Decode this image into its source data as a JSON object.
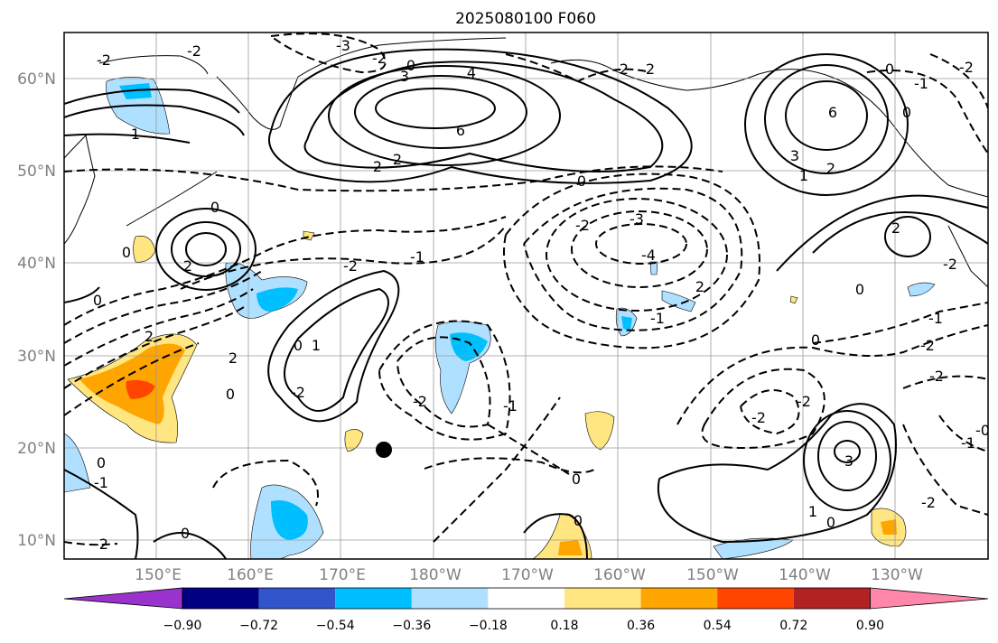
{
  "title": "2025080100 F060",
  "lat_labels": [
    "60°N",
    "50°N",
    "40°N",
    "30°N",
    "20°N",
    "10°N"
  ],
  "lon_labels": [
    "150°E",
    "160°E",
    "170°E",
    "180°W",
    "170°W",
    "160°W",
    "150°W",
    "140°W",
    "130°W"
  ],
  "colorbar": {
    "ticks": [
      "−0.90",
      "−0.72",
      "−0.54",
      "−0.36",
      "−0.18",
      "0.18",
      "0.36",
      "0.54",
      "0.72",
      "0.90"
    ],
    "colors": [
      "#9933cc",
      "#000080",
      "#3355cc",
      "#00bfff",
      "#b0e0ff",
      "#ffffff",
      "#ffe680",
      "#ffa500",
      "#ff4500",
      "#b22222",
      "#ff88aa"
    ]
  },
  "contour_labels": [
    {
      "text": "-3"
    },
    {
      "text": "-2"
    },
    {
      "text": "0"
    },
    {
      "text": "4"
    },
    {
      "text": "3"
    },
    {
      "text": "6"
    },
    {
      "text": "2"
    },
    {
      "text": "2"
    },
    {
      "text": "1"
    },
    {
      "text": "-2"
    },
    {
      "text": "-2"
    },
    {
      "text": "0"
    },
    {
      "text": "0"
    },
    {
      "text": "-2"
    },
    {
      "text": "2"
    },
    {
      "text": "6"
    },
    {
      "text": "3"
    },
    {
      "text": "2"
    },
    {
      "text": "1"
    },
    {
      "text": "0"
    },
    {
      "text": "0"
    },
    {
      "text": "-2"
    },
    {
      "text": "-1"
    },
    {
      "text": "-3"
    },
    {
      "text": "-2"
    },
    {
      "text": "-4"
    },
    {
      "text": "2"
    },
    {
      "text": "-2"
    },
    {
      "text": "0"
    },
    {
      "text": "2"
    },
    {
      "text": "0"
    },
    {
      "text": "-1"
    },
    {
      "text": "2"
    },
    {
      "text": "2"
    },
    {
      "text": "0"
    },
    {
      "text": "-2"
    },
    {
      "text": "-2"
    },
    {
      "text": "-2"
    },
    {
      "text": "-1"
    },
    {
      "text": "-2"
    },
    {
      "text": "2"
    },
    {
      "text": "3"
    },
    {
      "text": "1"
    },
    {
      "text": "0"
    },
    {
      "text": "0"
    },
    {
      "text": "-2"
    },
    {
      "text": "-1"
    },
    {
      "text": "0"
    },
    {
      "text": "-2"
    },
    {
      "text": "-2"
    },
    {
      "text": "0"
    },
    {
      "text": "0"
    },
    {
      "text": "0"
    },
    {
      "text": "1"
    },
    {
      "text": "-2"
    },
    {
      "text": "-0"
    },
    {
      "text": "-1"
    },
    {
      "text": "0"
    },
    {
      "text": "-2"
    },
    {
      "text": "-1"
    },
    {
      "text": "0"
    },
    {
      "text": "-1"
    }
  ]
}
